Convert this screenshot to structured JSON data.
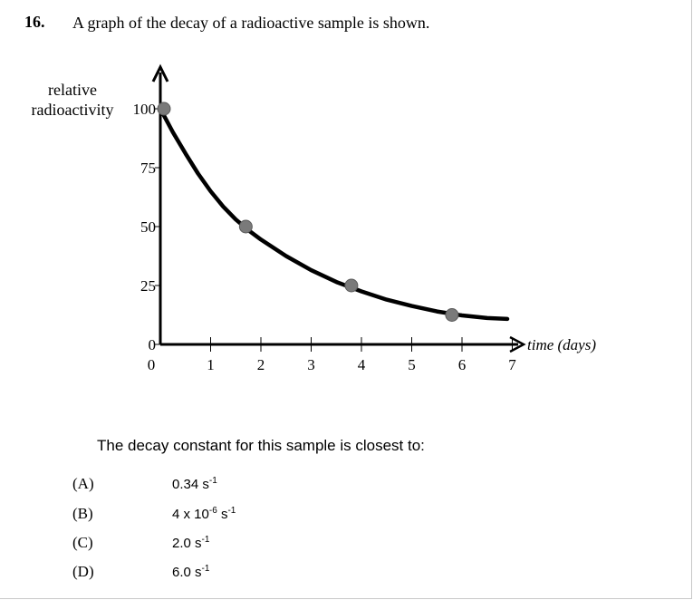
{
  "question": {
    "number": "16.",
    "text": "A graph of the decay of a radioactive sample is shown.",
    "prompt": "The decay constant for this sample is closest to:"
  },
  "chart_data": {
    "type": "scatter",
    "ylabel_lines": [
      "relative",
      "radioactivity"
    ],
    "xlabel": "time (days)",
    "x_ticks": [
      0,
      1,
      2,
      3,
      4,
      5,
      6,
      7
    ],
    "y_ticks": [
      0,
      25,
      50,
      75,
      100
    ],
    "xlim": [
      0,
      7
    ],
    "ylim": [
      0,
      100
    ],
    "points": [
      {
        "x": 0,
        "y": 100
      },
      {
        "x": 1.7,
        "y": 50
      },
      {
        "x": 3.8,
        "y": 25
      },
      {
        "x": 5.8,
        "y": 12.5
      }
    ],
    "curve_x": [
      0,
      0.25,
      0.5,
      0.75,
      1,
      1.25,
      1.5,
      1.75,
      2,
      2.5,
      3,
      3.5,
      4,
      4.5,
      5,
      5.5,
      6,
      6.5,
      6.9
    ],
    "curve_y": [
      100,
      90,
      81,
      72.5,
      65,
      58.5,
      53,
      48.5,
      44.5,
      37.5,
      31.5,
      26.5,
      22.5,
      19,
      16.3,
      14,
      12.3,
      11.2,
      10.8
    ]
  },
  "options": [
    {
      "letter": "(A)",
      "base": "0.34 s",
      "exp": "-1"
    },
    {
      "letter": "(B)",
      "base": "4 x 10",
      "exp": "-6",
      "base2": " s",
      "exp2": "-1"
    },
    {
      "letter": "(C)",
      "base": "2.0 s",
      "exp": "-1"
    },
    {
      "letter": "(D)",
      "base": "6.0 s",
      "exp": "-1"
    }
  ]
}
